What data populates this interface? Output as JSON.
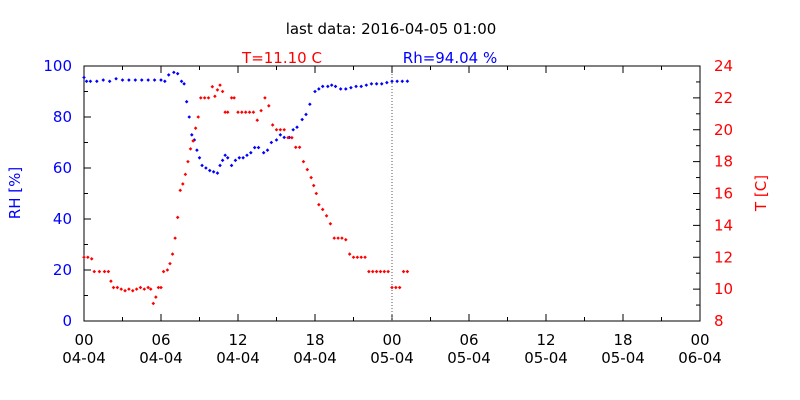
{
  "title": "last data: 2016-04-05 01:00",
  "chart_data": {
    "type": "scatter",
    "t_label": "T=11.10 C",
    "rh_label": "Rh=94.04 %",
    "y_left_label": "RH [%]",
    "y_right_label": "T [C]",
    "y_left_lim": [
      0,
      100
    ],
    "y_right_lim": [
      8,
      24
    ],
    "y_left_ticks": [
      "0",
      "20",
      "40",
      "60",
      "80",
      "100"
    ],
    "y_right_ticks": [
      "8",
      "10",
      "12",
      "14",
      "16",
      "18",
      "20",
      "22",
      "24"
    ],
    "x_lim_hours": [
      0,
      48
    ],
    "x_ticks": [
      {
        "h": 0,
        "top": "00",
        "bottom": "04-04"
      },
      {
        "h": 6,
        "top": "06",
        "bottom": "04-04"
      },
      {
        "h": 12,
        "top": "12",
        "bottom": "04-04"
      },
      {
        "h": 18,
        "top": "18",
        "bottom": "04-04"
      },
      {
        "h": 24,
        "top": "00",
        "bottom": "05-04"
      },
      {
        "h": 30,
        "top": "06",
        "bottom": "05-04"
      },
      {
        "h": 36,
        "top": "12",
        "bottom": "05-04"
      },
      {
        "h": 42,
        "top": "18",
        "bottom": "05-04"
      },
      {
        "h": 48,
        "top": "00",
        "bottom": "06-04"
      }
    ],
    "marker_hours": 24,
    "colors": {
      "rh": "#0000ff",
      "t": "#ff0000",
      "axis": "#000000"
    },
    "series": [
      {
        "name": "RH [%]",
        "axis": "left",
        "points": [
          [
            0,
            95.5
          ],
          [
            0.2,
            94
          ],
          [
            0.5,
            94
          ],
          [
            1,
            94
          ],
          [
            1.5,
            94.5
          ],
          [
            2,
            94
          ],
          [
            2.5,
            95
          ],
          [
            3,
            94.5
          ],
          [
            3.5,
            94.5
          ],
          [
            4,
            94.5
          ],
          [
            4.5,
            94.5
          ],
          [
            5,
            94.5
          ],
          [
            5.5,
            94.5
          ],
          [
            6,
            94.5
          ],
          [
            6.3,
            94
          ],
          [
            6.6,
            96.5
          ],
          [
            7,
            97.5
          ],
          [
            7.3,
            97
          ],
          [
            7.6,
            94
          ],
          [
            7.8,
            93
          ],
          [
            8,
            86
          ],
          [
            8.2,
            80
          ],
          [
            8.4,
            73
          ],
          [
            8.6,
            71
          ],
          [
            8.8,
            67
          ],
          [
            9,
            64
          ],
          [
            9.2,
            61
          ],
          [
            9.5,
            60
          ],
          [
            9.8,
            59
          ],
          [
            10.1,
            58.5
          ],
          [
            10.4,
            58
          ],
          [
            10.6,
            61
          ],
          [
            10.8,
            63
          ],
          [
            11,
            65
          ],
          [
            11.2,
            64
          ],
          [
            11.5,
            61
          ],
          [
            11.8,
            63
          ],
          [
            12.1,
            64
          ],
          [
            12.4,
            64
          ],
          [
            12.7,
            65
          ],
          [
            13,
            66
          ],
          [
            13.3,
            68
          ],
          [
            13.6,
            68
          ],
          [
            14,
            66
          ],
          [
            14.3,
            67
          ],
          [
            14.6,
            70
          ],
          [
            15,
            71
          ],
          [
            15.3,
            73
          ],
          [
            15.6,
            72
          ],
          [
            16,
            72
          ],
          [
            16.3,
            75
          ],
          [
            16.6,
            76
          ],
          [
            17,
            79
          ],
          [
            17.3,
            81
          ],
          [
            17.6,
            85
          ],
          [
            18,
            90
          ],
          [
            18.3,
            91
          ],
          [
            18.6,
            92
          ],
          [
            19,
            92
          ],
          [
            19.3,
            92.5
          ],
          [
            19.6,
            92
          ],
          [
            20,
            91
          ],
          [
            20.4,
            91
          ],
          [
            20.8,
            91.5
          ],
          [
            21.2,
            92
          ],
          [
            21.6,
            92
          ],
          [
            22,
            92.5
          ],
          [
            22.4,
            93
          ],
          [
            22.8,
            93
          ],
          [
            23.2,
            93
          ],
          [
            23.6,
            93.5
          ],
          [
            24,
            94
          ],
          [
            24.4,
            94
          ],
          [
            24.8,
            94
          ],
          [
            25.2,
            94.04
          ]
        ]
      },
      {
        "name": "T [C]",
        "axis": "right",
        "points": [
          [
            0,
            12
          ],
          [
            0.3,
            12
          ],
          [
            0.6,
            11.9
          ],
          [
            0.8,
            11.1
          ],
          [
            1.2,
            11.1
          ],
          [
            1.6,
            11.1
          ],
          [
            1.9,
            11.1
          ],
          [
            2.1,
            10.5
          ],
          [
            2.3,
            10.1
          ],
          [
            2.6,
            10.1
          ],
          [
            2.9,
            10
          ],
          [
            3.2,
            9.9
          ],
          [
            3.5,
            10
          ],
          [
            3.8,
            9.9
          ],
          [
            4.1,
            10
          ],
          [
            4.4,
            10.1
          ],
          [
            4.7,
            10
          ],
          [
            5,
            10.1
          ],
          [
            5.2,
            10
          ],
          [
            5.4,
            9.1
          ],
          [
            5.6,
            9.5
          ],
          [
            5.8,
            10.1
          ],
          [
            6,
            10.1
          ],
          [
            6.2,
            11.1
          ],
          [
            6.5,
            11.2
          ],
          [
            6.7,
            11.6
          ],
          [
            6.9,
            12.2
          ],
          [
            7.1,
            13.2
          ],
          [
            7.3,
            14.5
          ],
          [
            7.5,
            16.2
          ],
          [
            7.7,
            16.6
          ],
          [
            7.9,
            17.2
          ],
          [
            8.1,
            18
          ],
          [
            8.3,
            18.8
          ],
          [
            8.5,
            19.3
          ],
          [
            8.7,
            20.1
          ],
          [
            8.9,
            20.8
          ],
          [
            9.1,
            22
          ],
          [
            9.4,
            22
          ],
          [
            9.7,
            22
          ],
          [
            10,
            22.7
          ],
          [
            10.2,
            22.1
          ],
          [
            10.4,
            22.5
          ],
          [
            10.6,
            22.8
          ],
          [
            10.8,
            22.4
          ],
          [
            11,
            21.1
          ],
          [
            11.2,
            21.1
          ],
          [
            11.5,
            22
          ],
          [
            11.7,
            22
          ],
          [
            12,
            21.1
          ],
          [
            12.3,
            21.1
          ],
          [
            12.6,
            21.1
          ],
          [
            12.9,
            21.1
          ],
          [
            13.2,
            21.1
          ],
          [
            13.5,
            20.6
          ],
          [
            13.8,
            21.2
          ],
          [
            14.1,
            22
          ],
          [
            14.4,
            21.5
          ],
          [
            14.7,
            20.3
          ],
          [
            15,
            20
          ],
          [
            15.3,
            20
          ],
          [
            15.6,
            20
          ],
          [
            15.9,
            19.5
          ],
          [
            16.2,
            19.5
          ],
          [
            16.5,
            18.9
          ],
          [
            16.8,
            18.9
          ],
          [
            17.1,
            18
          ],
          [
            17.4,
            17.5
          ],
          [
            17.7,
            17
          ],
          [
            17.9,
            16.5
          ],
          [
            18.1,
            16
          ],
          [
            18.3,
            15.3
          ],
          [
            18.6,
            15
          ],
          [
            18.9,
            14.6
          ],
          [
            19.2,
            14.1
          ],
          [
            19.5,
            13.2
          ],
          [
            19.8,
            13.2
          ],
          [
            20.1,
            13.2
          ],
          [
            20.4,
            13.1
          ],
          [
            20.7,
            12.2
          ],
          [
            21,
            12
          ],
          [
            21.3,
            12
          ],
          [
            21.6,
            12
          ],
          [
            21.9,
            12
          ],
          [
            22.2,
            11.1
          ],
          [
            22.5,
            11.1
          ],
          [
            22.8,
            11.1
          ],
          [
            23.1,
            11.1
          ],
          [
            23.4,
            11.1
          ],
          [
            23.7,
            11.1
          ],
          [
            24,
            10.1
          ],
          [
            24.3,
            10.1
          ],
          [
            24.6,
            10.1
          ],
          [
            24.9,
            11.1
          ],
          [
            25.2,
            11.1
          ]
        ]
      }
    ]
  }
}
